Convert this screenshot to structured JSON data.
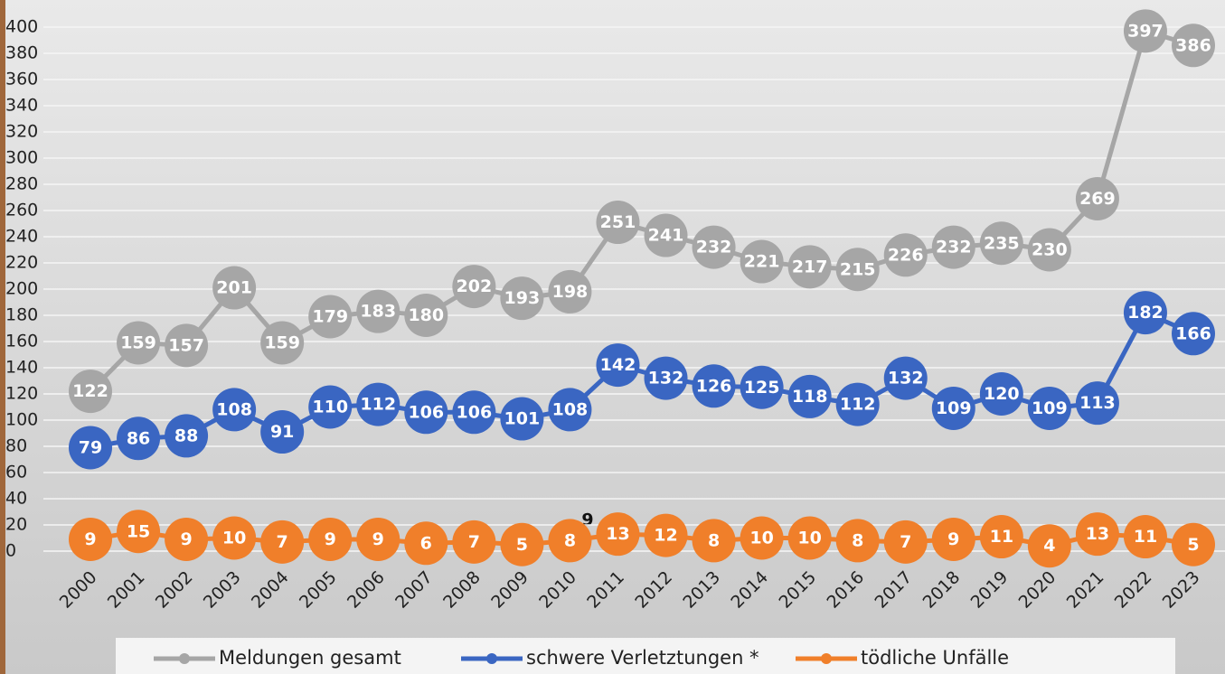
{
  "chart_data": {
    "type": "line",
    "categories": [
      "2000",
      "2001",
      "2002",
      "2003",
      "2004",
      "2005",
      "2006",
      "2007",
      "2008",
      "2009",
      "2010",
      "2011",
      "2012",
      "2013",
      "2014",
      "2015",
      "2016",
      "2017",
      "2018",
      "2019",
      "2020",
      "2021",
      "2022",
      "2023"
    ],
    "series": [
      {
        "name": "Meldungen gesamt",
        "color": "#a6a6a6",
        "values": [
          122,
          159,
          157,
          201,
          159,
          179,
          183,
          180,
          202,
          193,
          198,
          251,
          241,
          232,
          221,
          217,
          215,
          226,
          232,
          235,
          230,
          269,
          397,
          386
        ]
      },
      {
        "name": "schwere Verletztungen *",
        "color": "#3a66c2",
        "values": [
          79,
          86,
          88,
          108,
          91,
          110,
          112,
          106,
          106,
          101,
          108,
          142,
          132,
          126,
          125,
          118,
          112,
          132,
          109,
          120,
          109,
          113,
          182,
          166
        ]
      },
      {
        "name": "tödliche Unfälle",
        "color": "#f07f2a",
        "values": [
          9,
          15,
          9,
          10,
          7,
          9,
          9,
          6,
          7,
          5,
          8,
          13,
          12,
          8,
          10,
          10,
          8,
          7,
          9,
          11,
          4,
          13,
          11,
          5
        ]
      }
    ],
    "annotation": "9",
    "ylim": [
      0,
      400
    ],
    "yticks": [
      0,
      20,
      40,
      60,
      80,
      100,
      120,
      140,
      160,
      180,
      200,
      220,
      240,
      260,
      280,
      300,
      320,
      340,
      360,
      380,
      400
    ],
    "grid": true
  }
}
